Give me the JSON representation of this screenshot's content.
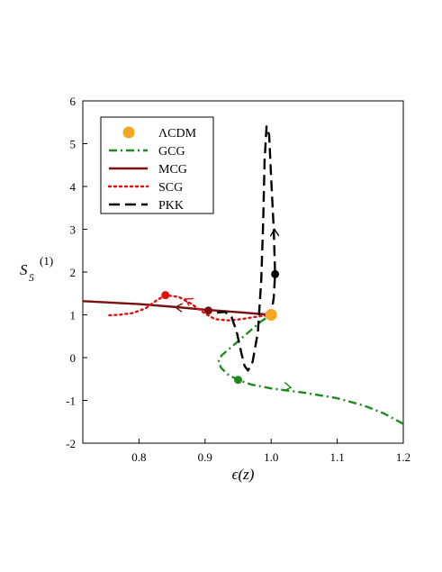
{
  "chart_data": {
    "type": "line",
    "xlabel": "ϵ(z)",
    "ylabel": "S5(1)",
    "xlim": [
      0.715,
      1.2
    ],
    "ylim": [
      -2,
      6
    ],
    "x_ticks": [
      0.8,
      0.9,
      1.0,
      1.1,
      1.2
    ],
    "x_tick_labels": [
      "0.8",
      "0.9",
      "1.0",
      "1.1",
      "1.2"
    ],
    "y_ticks": [
      -2,
      -1,
      0,
      1,
      2,
      3,
      4,
      5,
      6
    ],
    "y_tick_labels": [
      "-2",
      "-1",
      "0",
      "1",
      "2",
      "3",
      "4",
      "5",
      "6"
    ],
    "grid": false,
    "legend_placement": "top-left",
    "series": [
      {
        "name": "ΛCDM",
        "style": "marker",
        "color": "#f5a623",
        "points": [
          [
            1.0,
            1.0
          ]
        ]
      },
      {
        "name": "GCG",
        "style": "dashdot",
        "color": "#1f8a1f",
        "points": [
          [
            1.2,
            -1.55
          ],
          [
            1.17,
            -1.3
          ],
          [
            1.14,
            -1.12
          ],
          [
            1.1,
            -0.95
          ],
          [
            1.05,
            -0.82
          ],
          [
            1.0,
            -0.72
          ],
          [
            0.97,
            -0.63
          ],
          [
            0.95,
            -0.52
          ],
          [
            0.935,
            -0.4
          ],
          [
            0.925,
            -0.25
          ],
          [
            0.92,
            -0.1
          ],
          [
            0.925,
            0.05
          ],
          [
            0.94,
            0.25
          ],
          [
            0.955,
            0.45
          ],
          [
            0.97,
            0.65
          ],
          [
            0.985,
            0.85
          ],
          [
            1.0,
            1.0
          ]
        ],
        "markers": [
          [
            0.95,
            -0.52
          ]
        ],
        "arrows": [
          [
            1.03,
            -0.7
          ]
        ]
      },
      {
        "name": "MCG",
        "style": "solid",
        "color": "#7a1010",
        "points": [
          [
            0.715,
            1.32
          ],
          [
            0.8,
            1.25
          ],
          [
            0.85,
            1.19
          ],
          [
            0.9,
            1.12
          ],
          [
            0.95,
            1.06
          ],
          [
            1.0,
            1.0
          ]
        ],
        "markers": [
          [
            0.905,
            1.1
          ]
        ],
        "arrows": [
          [
            0.855,
            1.18
          ]
        ]
      },
      {
        "name": "SCG",
        "style": "dotted",
        "color": "#e01010",
        "points": [
          [
            0.755,
            0.99
          ],
          [
            0.77,
            1.0
          ],
          [
            0.79,
            1.04
          ],
          [
            0.81,
            1.15
          ],
          [
            0.825,
            1.32
          ],
          [
            0.84,
            1.46
          ],
          [
            0.86,
            1.42
          ],
          [
            0.88,
            1.25
          ],
          [
            0.9,
            1.03
          ],
          [
            0.915,
            0.9
          ],
          [
            0.935,
            0.87
          ],
          [
            0.955,
            0.9
          ],
          [
            0.975,
            0.95
          ],
          [
            1.0,
            1.0
          ]
        ],
        "markers": [
          [
            0.84,
            1.46
          ]
        ],
        "arrows": [
          [
            0.87,
            1.37
          ]
        ]
      },
      {
        "name": "PKK",
        "style": "dashed",
        "color": "#000000",
        "points": [
          [
            0.918,
            1.05
          ],
          [
            0.93,
            1.07
          ],
          [
            0.94,
            0.95
          ],
          [
            0.948,
            0.6
          ],
          [
            0.955,
            0.1
          ],
          [
            0.96,
            -0.2
          ],
          [
            0.965,
            -0.3
          ],
          [
            0.972,
            -0.1
          ],
          [
            0.98,
            0.6
          ],
          [
            0.985,
            1.8
          ],
          [
            0.988,
            3.2
          ],
          [
            0.99,
            4.6
          ],
          [
            0.993,
            5.4
          ],
          [
            0.997,
            5.2
          ],
          [
            1.0,
            4.2
          ],
          [
            1.004,
            3.0
          ],
          [
            1.006,
            1.95
          ],
          [
            1.004,
            1.4
          ],
          [
            1.0,
            1.0
          ]
        ],
        "markers": [
          [
            1.006,
            1.95
          ]
        ],
        "arrows": [
          [
            1.005,
            3.0
          ]
        ]
      }
    ]
  }
}
